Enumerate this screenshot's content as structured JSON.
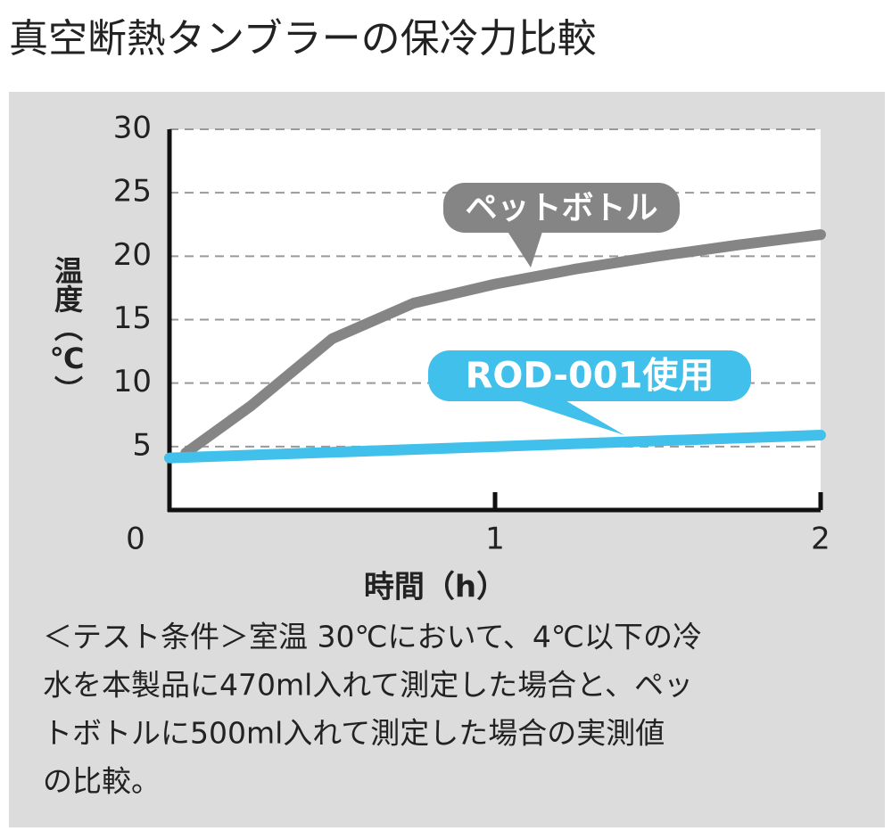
{
  "chart_data": {
    "type": "line",
    "title": "真空断熱タンブラーの保冷力比較",
    "xlabel": "時間（h）",
    "ylabel": "温度（℃）",
    "xlim": [
      0,
      2
    ],
    "xticks": [
      0,
      1,
      2
    ],
    "ylim": [
      0,
      30
    ],
    "yticks": [
      5,
      10,
      15,
      20,
      25,
      30
    ],
    "grid": true,
    "series": [
      {
        "name": "ペットボトル",
        "color": "#858585",
        "x": [
          0.05,
          0.25,
          0.5,
          0.75,
          1,
          1.25,
          1.5,
          1.75,
          2
        ],
        "values": [
          4.5,
          8.2,
          13.5,
          16.3,
          17.8,
          19.0,
          20.0,
          20.9,
          21.7
        ]
      },
      {
        "name": "ROD-001使用",
        "color": "#40c0ea",
        "x": [
          0,
          1,
          2
        ],
        "values": [
          4.1,
          5.0,
          5.9
        ]
      }
    ],
    "note": [
      "＜テスト条件＞室温 30℃において、4℃以下の冷",
      "水を本製品に470ml入れて測定した場合と、ペッ",
      "トボトルに500ml入れて測定した場合の実測値",
      "の比較。"
    ]
  }
}
